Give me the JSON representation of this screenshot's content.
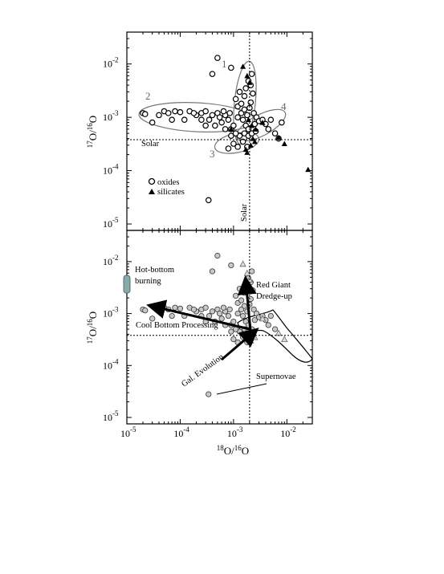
{
  "figure": {
    "xlabel_main": "O/",
    "xlabel_sup1": "18",
    "xlabel_sup2": "16",
    "xlabel_tail": "O",
    "ylabel_sup1": "17",
    "ylabel_main": "O/",
    "ylabel_sup2": "16",
    "ylabel_tail": "O"
  },
  "chart_data": [
    {
      "type": "scatter",
      "panel": "top",
      "xlabel": "18O/16O",
      "ylabel": "17O/16O",
      "xscale": "log",
      "yscale": "log",
      "xlim": [
        1e-05,
        0.03
      ],
      "ylim": [
        1e-05,
        0.03
      ],
      "x_ticks": [
        {
          "base": "10",
          "exp": "-5",
          "value": 1e-05
        },
        {
          "base": "10",
          "exp": "-4",
          "value": 0.0001
        },
        {
          "base": "10",
          "exp": "-3",
          "value": 0.001
        },
        {
          "base": "10",
          "exp": "-2",
          "value": 0.01
        }
      ],
      "y_ticks": [
        {
          "base": "10",
          "exp": "-5",
          "value": 1e-05
        },
        {
          "base": "10",
          "exp": "-4",
          "value": 0.0001
        },
        {
          "base": "10",
          "exp": "-3",
          "value": 0.001
        },
        {
          "base": "10",
          "exp": "-2",
          "value": 0.01
        }
      ],
      "solar": {
        "x": 0.002,
        "y": 0.00038
      },
      "solar_label_h": "Solar",
      "solar_label_v": "Solar",
      "legend": {
        "position": "bottom-left",
        "entries": [
          "oxides",
          "silicates"
        ]
      },
      "group_labels": [
        "1",
        "2",
        "3",
        "4"
      ],
      "series": [
        {
          "name": "oxides",
          "marker": "open-circle",
          "points": [
            [
              0.0005,
              0.013
            ],
            [
              0.0009,
              0.0085
            ],
            [
              0.0004,
              0.0065
            ],
            [
              0.00034,
              2.8e-05
            ],
            [
              2e-05,
              0.0012
            ],
            [
              2.2e-05,
              0.00115
            ],
            [
              3e-05,
              0.0008
            ],
            [
              4e-05,
              0.0011
            ],
            [
              5e-05,
              0.0013
            ],
            [
              6e-05,
              0.0012
            ],
            [
              8e-05,
              0.0013
            ],
            [
              0.0001,
              0.00125
            ],
            [
              0.00012,
              0.0009
            ],
            [
              0.00015,
              0.0013
            ],
            [
              0.0002,
              0.0011
            ],
            [
              0.00025,
              0.0012
            ],
            [
              0.0003,
              0.0013
            ],
            [
              0.00035,
              0.0009
            ],
            [
              0.0004,
              0.0011
            ],
            [
              0.0005,
              0.0012
            ],
            [
              0.0006,
              0.0008
            ],
            [
              0.0007,
              0.0011
            ],
            [
              0.00045,
              0.0007
            ],
            [
              0.0008,
              0.0009
            ],
            [
              0.0009,
              0.0006
            ],
            [
              0.001,
              0.0007
            ],
            [
              0.0011,
              0.0022
            ],
            [
              0.0012,
              0.0016
            ],
            [
              0.0013,
              0.003
            ],
            [
              0.0014,
              0.0012
            ],
            [
              0.0015,
              0.0009
            ],
            [
              0.0016,
              0.0025
            ],
            [
              0.0017,
              0.0007
            ],
            [
              0.0018,
              0.0011
            ],
            [
              0.0019,
              0.0006
            ],
            [
              0.002,
              0.0015
            ],
            [
              0.0021,
              0.004
            ],
            [
              0.0022,
              0.0065
            ],
            [
              0.0023,
              0.0028
            ],
            [
              0.0024,
              0.0012
            ],
            [
              0.0025,
              0.00075
            ],
            [
              0.0027,
              0.001
            ],
            [
              0.003,
              0.00085
            ],
            [
              0.0035,
              0.0009
            ],
            [
              0.004,
              0.00075
            ],
            [
              0.0045,
              0.0006
            ],
            [
              0.005,
              0.0009
            ],
            [
              0.006,
              0.0005
            ],
            [
              0.007,
              0.0004
            ],
            [
              0.008,
              0.0008
            ],
            [
              0.0018,
              0.00028
            ],
            [
              0.0012,
              0.00028
            ],
            [
              0.001,
              0.00032
            ],
            [
              0.0008,
              0.00026
            ],
            [
              0.0015,
              0.00035
            ],
            [
              0.0013,
              0.00045
            ],
            [
              0.0016,
              0.0005
            ],
            [
              0.0019,
              0.00045
            ],
            [
              0.0022,
              0.0005
            ],
            [
              0.0026,
              0.00055
            ],
            [
              0.0011,
              0.0005
            ],
            [
              0.0009,
              0.00045
            ],
            [
              0.0014,
              0.0018
            ],
            [
              0.0017,
              0.0035
            ],
            [
              0.0019,
              0.0048
            ],
            [
              0.0021,
              0.0019
            ],
            [
              0.0016,
              0.0014
            ],
            [
              0.0012,
              0.001
            ],
            [
              0.00025,
              0.0009
            ],
            [
              0.0003,
              0.0007
            ],
            [
              0.00018,
              0.0012
            ],
            [
              7e-05,
              0.0009
            ],
            [
              0.00055,
              0.001
            ],
            [
              0.00065,
              0.0013
            ],
            [
              0.00085,
              0.0012
            ],
            [
              0.0007,
              0.0006
            ]
          ]
        },
        {
          "name": "silicates",
          "marker": "filled-triangle",
          "points": [
            [
              0.0015,
              0.009
            ],
            [
              0.002,
              0.0045
            ],
            [
              0.0018,
              0.006
            ],
            [
              0.0009,
              0.0006
            ],
            [
              0.0035,
              0.0008
            ],
            [
              0.0021,
              0.0003
            ],
            [
              0.0018,
              0.00022
            ],
            [
              0.0023,
              0.0004
            ],
            [
              0.0025,
              0.00035
            ],
            [
              0.007,
              0.00042
            ],
            [
              0.009,
              0.00032
            ],
            [
              0.025,
              0.000105
            ],
            [
              0.0022,
              0.0007
            ],
            [
              0.0019,
              0.0009
            ],
            [
              0.0026,
              0.0006
            ],
            [
              0.0017,
              0.00025
            ]
          ]
        }
      ]
    },
    {
      "type": "scatter",
      "panel": "bottom",
      "xlabel": "18O/16O",
      "ylabel": "17O/16O",
      "xscale": "log",
      "yscale": "log",
      "xlim": [
        1e-05,
        0.03
      ],
      "ylim": [
        1e-05,
        0.03
      ],
      "x_ticks": [
        {
          "base": "10",
          "exp": "-5",
          "value": 1e-05
        },
        {
          "base": "10",
          "exp": "-4",
          "value": 0.0001
        },
        {
          "base": "10",
          "exp": "-3",
          "value": 0.001
        },
        {
          "base": "10",
          "exp": "-2",
          "value": 0.01
        }
      ],
      "y_ticks": [
        {
          "base": "10",
          "exp": "-5",
          "value": 1e-05
        },
        {
          "base": "10",
          "exp": "-4",
          "value": 0.0001
        },
        {
          "base": "10",
          "exp": "-3",
          "value": 0.001
        },
        {
          "base": "10",
          "exp": "-2",
          "value": 0.01
        }
      ],
      "solar": {
        "x": 0.002,
        "y": 0.00038
      },
      "annotations": {
        "hot_bottom_1": "Hot-bottom",
        "hot_bottom_2": "burning",
        "red_giant_1": "Red Giant",
        "red_giant_2": "Dredge-up",
        "cool_bottom": "Cool Bottom Processing",
        "gal_evolution": "Gal. Evolution",
        "supernovae": "Supernovae"
      },
      "series": [
        {
          "name": "oxides",
          "marker": "grey-circle",
          "points": [
            [
              0.0005,
              0.013
            ],
            [
              0.0009,
              0.0085
            ],
            [
              0.0004,
              0.0065
            ],
            [
              0.00034,
              2.8e-05
            ],
            [
              2e-05,
              0.0012
            ],
            [
              2.2e-05,
              0.00115
            ],
            [
              3e-05,
              0.0008
            ],
            [
              4e-05,
              0.0011
            ],
            [
              5e-05,
              0.0013
            ],
            [
              6e-05,
              0.0012
            ],
            [
              8e-05,
              0.0013
            ],
            [
              0.0001,
              0.00125
            ],
            [
              0.00012,
              0.0009
            ],
            [
              0.00015,
              0.0013
            ],
            [
              0.0002,
              0.0011
            ],
            [
              0.00025,
              0.0012
            ],
            [
              0.0003,
              0.0013
            ],
            [
              0.00035,
              0.0009
            ],
            [
              0.0004,
              0.0011
            ],
            [
              0.0005,
              0.0012
            ],
            [
              0.0006,
              0.0008
            ],
            [
              0.0007,
              0.0011
            ],
            [
              0.00045,
              0.0007
            ],
            [
              0.0008,
              0.0009
            ],
            [
              0.0009,
              0.0006
            ],
            [
              0.001,
              0.0007
            ],
            [
              0.0011,
              0.0022
            ],
            [
              0.0012,
              0.0016
            ],
            [
              0.0013,
              0.003
            ],
            [
              0.0014,
              0.0012
            ],
            [
              0.0015,
              0.0009
            ],
            [
              0.0016,
              0.0025
            ],
            [
              0.0017,
              0.0007
            ],
            [
              0.0018,
              0.0011
            ],
            [
              0.0019,
              0.0006
            ],
            [
              0.002,
              0.0015
            ],
            [
              0.0021,
              0.004
            ],
            [
              0.0022,
              0.0065
            ],
            [
              0.0023,
              0.0028
            ],
            [
              0.0024,
              0.0012
            ],
            [
              0.0025,
              0.00075
            ],
            [
              0.0027,
              0.001
            ],
            [
              0.003,
              0.00085
            ],
            [
              0.0035,
              0.0009
            ],
            [
              0.004,
              0.00075
            ],
            [
              0.0045,
              0.0006
            ],
            [
              0.005,
              0.0009
            ],
            [
              0.006,
              0.0005
            ],
            [
              0.0018,
              0.00028
            ],
            [
              0.0012,
              0.00028
            ],
            [
              0.001,
              0.00032
            ],
            [
              0.0015,
              0.00035
            ],
            [
              0.0013,
              0.00045
            ],
            [
              0.0016,
              0.0005
            ],
            [
              0.0019,
              0.00045
            ],
            [
              0.0022,
              0.0005
            ],
            [
              0.0014,
              0.0018
            ],
            [
              0.0017,
              0.0035
            ],
            [
              0.0019,
              0.0048
            ],
            [
              0.0021,
              0.0019
            ],
            [
              0.0016,
              0.0014
            ],
            [
              0.0012,
              0.001
            ],
            [
              0.00025,
              0.0009
            ],
            [
              0.0003,
              0.0007
            ],
            [
              0.00018,
              0.0012
            ],
            [
              7e-05,
              0.0009
            ],
            [
              0.00055,
              0.001
            ],
            [
              0.00065,
              0.0013
            ],
            [
              0.00085,
              0.0012
            ],
            [
              0.0007,
              0.0006
            ],
            [
              0.0009,
              0.00045
            ],
            [
              0.0011,
              0.0005
            ]
          ]
        },
        {
          "name": "silicates",
          "marker": "open-triangle",
          "points": [
            [
              0.0015,
              0.009
            ],
            [
              0.002,
              0.0045
            ],
            [
              0.0018,
              0.006
            ],
            [
              0.0035,
              0.0008
            ],
            [
              0.0021,
              0.0003
            ],
            [
              0.0023,
              0.0004
            ],
            [
              0.0025,
              0.00035
            ],
            [
              0.007,
              0.00042
            ],
            [
              0.009,
              0.00032
            ]
          ]
        }
      ]
    }
  ]
}
